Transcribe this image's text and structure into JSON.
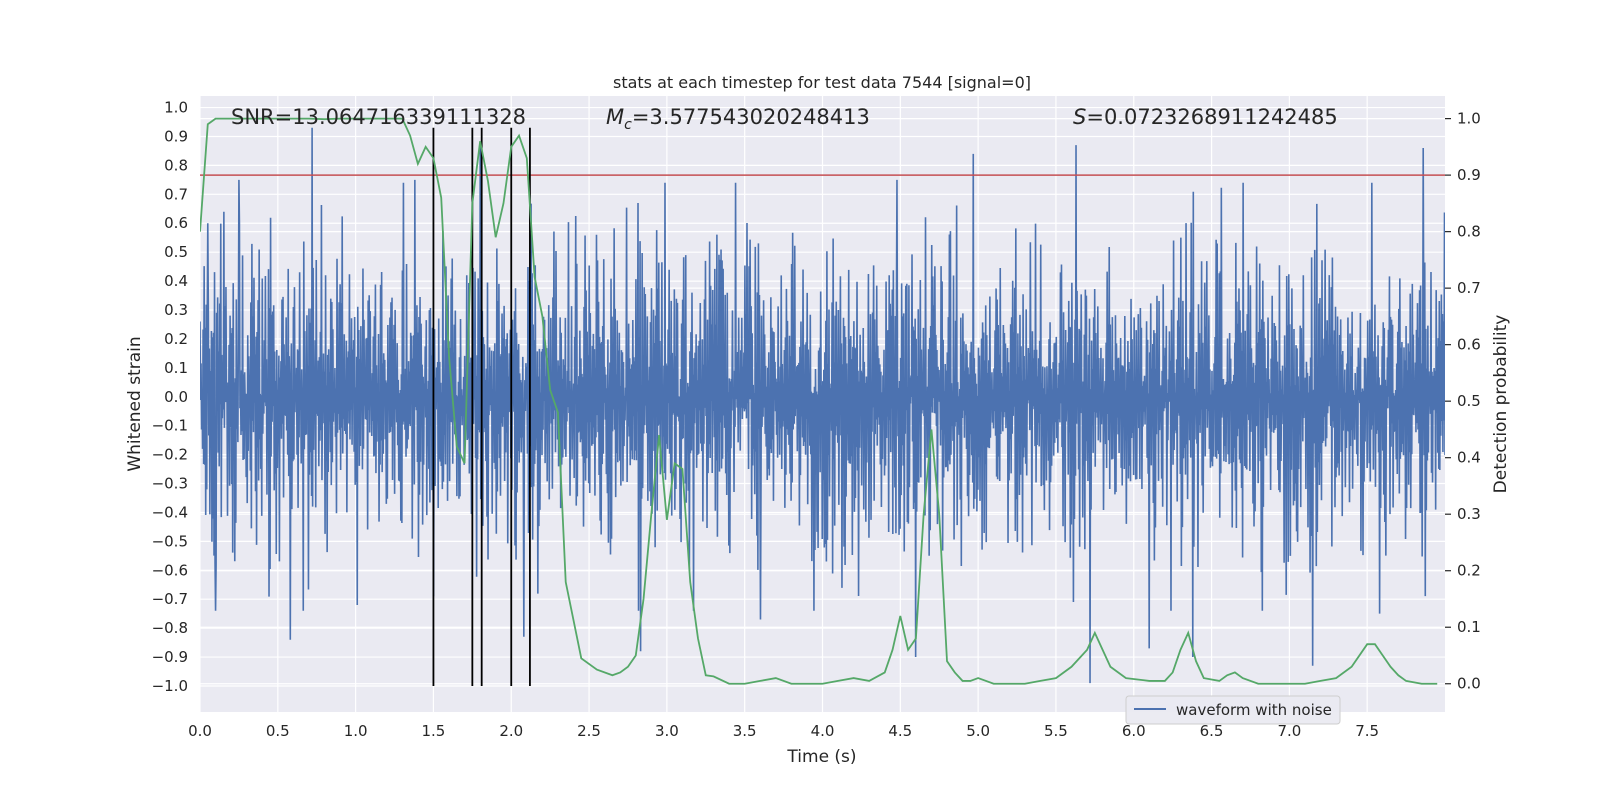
{
  "chart_data": {
    "type": "line",
    "title": "stats at each timestep for test data 7544 [signal=0]",
    "xlabel": "Time (s)",
    "ylabel": "Whitened strain",
    "y2label": "Detection probability",
    "xlim": [
      0.0,
      8.0
    ],
    "ylim": [
      -1.09,
      1.04
    ],
    "y2lim": [
      -0.05,
      1.04
    ],
    "xticks": [
      0.0,
      0.5,
      1.0,
      1.5,
      2.0,
      2.5,
      3.0,
      3.5,
      4.0,
      4.5,
      5.0,
      5.5,
      6.0,
      6.5,
      7.0,
      7.5
    ],
    "xtick_labels": [
      "0.0",
      "0.5",
      "1.0",
      "1.5",
      "2.0",
      "2.5",
      "3.0",
      "3.5",
      "4.0",
      "4.5",
      "5.0",
      "5.5",
      "6.0",
      "6.5",
      "7.0",
      "7.5"
    ],
    "yticks": [
      1.0,
      0.9,
      0.8,
      0.7,
      0.6,
      0.5,
      0.4,
      0.3,
      0.2,
      0.1,
      0.0,
      -0.1,
      -0.2,
      -0.3,
      -0.4,
      -0.5,
      -0.6,
      -0.7,
      -0.8,
      -0.9,
      -1.0
    ],
    "ytick_labels": [
      "1.0",
      "0.9",
      "0.8",
      "0.7",
      "0.6",
      "0.5",
      "0.4",
      "0.3",
      "0.2",
      "0.1",
      "0.0",
      "−0.1",
      "−0.2",
      "−0.3",
      "−0.4",
      "−0.5",
      "−0.6",
      "−0.7",
      "−0.8",
      "−0.9",
      "−1.0"
    ],
    "y2ticks": [
      1.0,
      0.9,
      0.8,
      0.7,
      0.6,
      0.5,
      0.4,
      0.3,
      0.2,
      0.1,
      0.0
    ],
    "y2tick_labels": [
      "1.0",
      "0.9",
      "0.8",
      "0.7",
      "0.6",
      "0.5",
      "0.4",
      "0.3",
      "0.2",
      "0.1",
      "0.0"
    ],
    "grid": true,
    "legend": {
      "placement": "lower-right",
      "entries": [
        "waveform with noise"
      ]
    },
    "annotations": {
      "snr": "SNR=13.064716339111328",
      "mc_symbol": "M",
      "mc_sub": "c",
      "mc_value": "=3.577543020248413",
      "s_symbol": "S",
      "s_value": "=0.0723268911242485"
    },
    "threshold": {
      "axis": "y2",
      "value": 0.9,
      "color": "#c44e52"
    },
    "vlines": {
      "x": [
        1.5,
        1.75,
        1.81,
        2.0,
        2.12
      ],
      "ymin": -1.0,
      "ymax": 0.93,
      "color": "#000000"
    },
    "waveform": {
      "name": "waveform with noise",
      "color": "#4c72b0",
      "x_range": [
        0.0,
        8.0
      ],
      "typical_amplitude": 0.42,
      "dense_band": [
        -0.3,
        0.35
      ],
      "peaks": [
        {
          "x": 0.05,
          "y": 0.6
        },
        {
          "x": 0.1,
          "y": -0.74
        },
        {
          "x": 0.25,
          "y": 0.75
        },
        {
          "x": 0.58,
          "y": -0.84
        },
        {
          "x": 0.72,
          "y": 0.93
        },
        {
          "x": 1.01,
          "y": -0.72
        },
        {
          "x": 1.38,
          "y": 0.75
        },
        {
          "x": 1.5,
          "y": -0.69
        },
        {
          "x": 1.8,
          "y": 0.88
        },
        {
          "x": 2.08,
          "y": -0.83
        },
        {
          "x": 2.83,
          "y": -0.88
        },
        {
          "x": 3.6,
          "y": -0.77
        },
        {
          "x": 4.48,
          "y": 0.75
        },
        {
          "x": 4.6,
          "y": -0.9
        },
        {
          "x": 4.97,
          "y": 0.84
        },
        {
          "x": 5.63,
          "y": 0.87
        },
        {
          "x": 5.72,
          "y": -0.99
        },
        {
          "x": 6.1,
          "y": -0.87
        },
        {
          "x": 6.38,
          "y": -0.9
        },
        {
          "x": 7.15,
          "y": -0.93
        },
        {
          "x": 7.58,
          "y": -0.75
        },
        {
          "x": 7.86,
          "y": 0.86
        }
      ]
    },
    "probability": {
      "name": "detection probability",
      "color": "#55a868",
      "x": [
        0.0,
        0.05,
        0.1,
        0.15,
        0.2,
        0.3,
        0.4,
        0.5,
        0.6,
        0.7,
        0.8,
        0.9,
        1.0,
        1.1,
        1.2,
        1.3,
        1.35,
        1.4,
        1.45,
        1.5,
        1.55,
        1.6,
        1.65,
        1.7,
        1.75,
        1.8,
        1.85,
        1.9,
        1.95,
        2.0,
        2.05,
        2.1,
        2.15,
        2.2,
        2.25,
        2.3,
        2.35,
        2.45,
        2.55,
        2.65,
        2.7,
        2.75,
        2.8,
        2.85,
        2.9,
        2.95,
        3.0,
        3.05,
        3.1,
        3.15,
        3.2,
        3.25,
        3.3,
        3.4,
        3.5,
        3.6,
        3.7,
        3.8,
        3.9,
        4.0,
        4.1,
        4.2,
        4.3,
        4.4,
        4.45,
        4.5,
        4.55,
        4.6,
        4.65,
        4.7,
        4.75,
        4.8,
        4.85,
        4.9,
        4.95,
        5.0,
        5.1,
        5.2,
        5.3,
        5.4,
        5.5,
        5.6,
        5.7,
        5.75,
        5.8,
        5.85,
        5.95,
        6.1,
        6.2,
        6.25,
        6.3,
        6.35,
        6.4,
        6.45,
        6.55,
        6.6,
        6.65,
        6.7,
        6.8,
        6.9,
        7.0,
        7.1,
        7.2,
        7.3,
        7.4,
        7.5,
        7.55,
        7.6,
        7.65,
        7.7,
        7.75,
        7.85,
        7.95
      ],
      "y": [
        0.8,
        0.99,
        1.0,
        1.0,
        1.0,
        1.0,
        1.0,
        1.0,
        1.0,
        1.0,
        0.999,
        1.0,
        1.0,
        1.0,
        1.0,
        1.0,
        0.97,
        0.92,
        0.95,
        0.93,
        0.86,
        0.58,
        0.42,
        0.39,
        0.85,
        0.96,
        0.89,
        0.79,
        0.85,
        0.95,
        0.97,
        0.93,
        0.72,
        0.65,
        0.52,
        0.48,
        0.18,
        0.045,
        0.025,
        0.015,
        0.02,
        0.03,
        0.05,
        0.15,
        0.3,
        0.44,
        0.29,
        0.39,
        0.38,
        0.18,
        0.08,
        0.015,
        0.013,
        0.0,
        0.0,
        0.005,
        0.01,
        0.0,
        0.0,
        0.0,
        0.005,
        0.01,
        0.005,
        0.02,
        0.06,
        0.12,
        0.06,
        0.08,
        0.3,
        0.45,
        0.3,
        0.04,
        0.02,
        0.005,
        0.005,
        0.01,
        0.0,
        0.0,
        0.0,
        0.005,
        0.01,
        0.03,
        0.06,
        0.09,
        0.06,
        0.03,
        0.01,
        0.005,
        0.005,
        0.02,
        0.06,
        0.09,
        0.04,
        0.01,
        0.005,
        0.015,
        0.02,
        0.01,
        0.0,
        0.0,
        0.0,
        0.0,
        0.005,
        0.01,
        0.03,
        0.07,
        0.07,
        0.05,
        0.03,
        0.015,
        0.005,
        0.0,
        0.0
      ]
    }
  }
}
